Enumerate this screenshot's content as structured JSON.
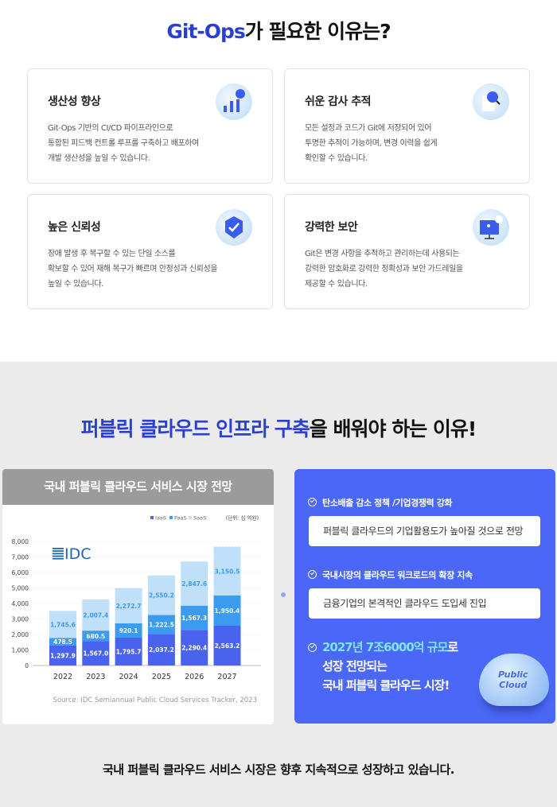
{
  "section1": {
    "title_accent": "Git-Ops",
    "title_rest": "가 필요한 이유는?",
    "cards": [
      {
        "title": "생산성 향상",
        "desc": "Git-Ops 기반의 CI/CD 파이프라인으로\n통합된 피드백 컨트롤 루프를 구축하고 배포하여\n개발 생산성을 높일 수 있습니다.",
        "icon": "bar-chart-icon"
      },
      {
        "title": "쉬운 감사 추적",
        "desc": "모든 설정과 코드가 Git에 저장되어 있어\n투명한 추적이 가능하며, 변경 이력을 쉽게\n확인할 수 있습니다.",
        "icon": "document-search-icon"
      },
      {
        "title": "높은 신뢰성",
        "desc": "장애 발생 후 복구할 수 있는 단일 소스를\n확보할 수 있어 재해 복구가 빠르며 안정성과 신뢰성을\n높일 수 있습니다.",
        "icon": "shield-check-icon"
      },
      {
        "title": "강력한 보안",
        "desc": "Git은 변경 사항을 추적하고 관리하는데 사용되는\n강력한 암호화로 강력한 정확성과 보안 가드레일을\n제공할 수 있습니다.",
        "icon": "monitor-lock-icon"
      }
    ]
  },
  "section2": {
    "title_accent": "퍼블릭 클라우드 인프라 구축",
    "title_rest": "을 배워야 하는 이유!",
    "chart_header": "국내 퍼블릭 클라우드 서비스 시장 전망",
    "points": [
      {
        "label": "탄소배출 감소 정책 /기업경쟁력 강화",
        "box": "퍼블릭 클라우드의 기업활용도가 높아질 것으로 전망"
      },
      {
        "label": "국내시장의 클라우드 워크로드의 확장 지속",
        "box": "금융기업의 본격적인 클라우드 도입세 진입"
      }
    ],
    "highlight_accent": "2027년 7조6000억 규모",
    "highlight_line1_rest": "로",
    "highlight_line2": "성장 전망되는",
    "highlight_line3": "국내 퍼블릭 클라우드 시장!",
    "cloud_label_1": "Public",
    "cloud_label_2": "Cloud",
    "footer": "국내 퍼블릭 클라우드 서비스 시장은 향후 지속적으로 성장하고 있습니다."
  },
  "chart_data": {
    "type": "bar",
    "stacked": true,
    "categories": [
      "2022",
      "2023",
      "2024",
      "2025",
      "2026",
      "2027"
    ],
    "series": [
      {
        "name": "IaaS",
        "color": "#4a63ee",
        "label_color": "#ffffff",
        "values": [
          1297.9,
          1567.0,
          1795.7,
          2037.2,
          2290.4,
          2563.2
        ],
        "labels": [
          "1,297.9",
          "1,567.0",
          "1,795.7",
          "2,037.2",
          "2,290.4",
          "2,563.2"
        ]
      },
      {
        "name": "PaaS",
        "color": "#3b9bf0",
        "label_color": "#ffffff",
        "values": [
          478.5,
          680.5,
          920.1,
          1222.5,
          1567.3,
          1950.4
        ],
        "labels": [
          "478.5",
          "680.5",
          "920.1",
          "1,222.5",
          "1,567.3",
          "1,950.4"
        ]
      },
      {
        "name": "SaaS",
        "color": "#bfe0f8",
        "label_color": "#3b9bf0",
        "values": [
          1745.6,
          2007.4,
          2272.7,
          2550.2,
          2847.6,
          3150.5
        ],
        "labels": [
          "1,745.6",
          "2,007.4",
          "2,272.7",
          "2,550.2",
          "2,847.6",
          "3,150.5"
        ]
      }
    ],
    "ylim": [
      0,
      8000
    ],
    "yticks": [
      "0",
      "1,000",
      "2,000",
      "3,000",
      "4,000",
      "5,000",
      "6,000",
      "7,000",
      "8,000"
    ],
    "unit": "(단위: 십 억원)",
    "legend": "top-right",
    "grid": true,
    "logo": "IDC",
    "source": "Source: IDC Semiannual Public Cloud Services Tracker, 2023"
  }
}
